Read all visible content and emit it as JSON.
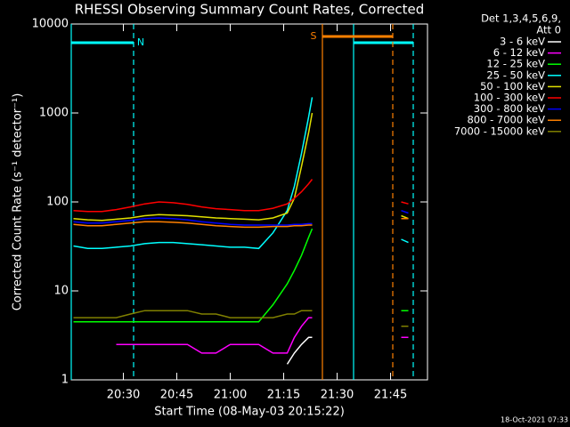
{
  "chart_data": {
    "type": "line",
    "title": "RHESSI Observing Summary Count Rates, Corrected",
    "xlabel": "Start Time (08-May-03 20:15:22)",
    "ylabel": "Corrected Count Rate (s⁻¹ detector⁻¹)",
    "legend_title": [
      "Det 1,3,4,5,6,9,",
      "Att 0"
    ],
    "footer": "18-Oct-2021 07:33",
    "yscale": "log",
    "grid": false,
    "xlim": [
      15.37,
      115.37
    ],
    "ylim": [
      1,
      10000
    ],
    "yticks": [
      1,
      10,
      100,
      1000,
      10000
    ],
    "xticks": [
      {
        "value": 30,
        "label": "20:30"
      },
      {
        "value": 45,
        "label": "20:45"
      },
      {
        "value": 60,
        "label": "21:00"
      },
      {
        "value": 75,
        "label": "21:15"
      },
      {
        "value": 90,
        "label": "21:30"
      },
      {
        "value": 105,
        "label": "21:45"
      }
    ],
    "x": [
      16,
      20,
      24,
      28,
      32,
      36,
      40,
      44,
      48,
      52,
      56,
      60,
      64,
      68,
      72,
      76,
      78,
      80,
      82,
      83,
      95,
      108,
      110
    ],
    "series": [
      {
        "name": "3 - 6 keV",
        "color": "#ffffff",
        "values": [
          null,
          null,
          null,
          null,
          null,
          null,
          null,
          null,
          null,
          null,
          null,
          null,
          null,
          null,
          null,
          1.5,
          2,
          2.5,
          3,
          3,
          null,
          null,
          null
        ]
      },
      {
        "name": "6 - 12 keV",
        "color": "#ff00ff",
        "values": [
          null,
          null,
          null,
          2.5,
          2.5,
          2.5,
          2.5,
          2.5,
          2.5,
          2,
          2,
          2.5,
          2.5,
          2.5,
          2,
          2,
          3,
          4,
          5,
          5,
          null,
          3,
          3
        ]
      },
      {
        "name": "12 - 25 keV",
        "color": "#00ff00",
        "values": [
          4.5,
          4.5,
          4.5,
          4.5,
          4.5,
          4.5,
          4.5,
          4.5,
          4.5,
          4.5,
          4.5,
          4.5,
          4.5,
          4.5,
          7,
          12,
          17,
          25,
          40,
          50,
          null,
          6,
          6
        ]
      },
      {
        "name": "25 - 50 keV",
        "color": "#00ffff",
        "values": [
          32,
          30,
          30,
          31,
          32,
          34,
          35,
          35,
          34,
          33,
          32,
          31,
          31,
          30,
          45,
          80,
          150,
          350,
          900,
          1500,
          null,
          38,
          35
        ]
      },
      {
        "name": "50 - 100 keV",
        "color": "#e0e000",
        "values": [
          65,
          63,
          62,
          64,
          66,
          70,
          72,
          71,
          70,
          68,
          66,
          65,
          64,
          63,
          66,
          75,
          110,
          250,
          600,
          1000,
          null,
          70,
          65
        ]
      },
      {
        "name": "100 - 300 keV",
        "color": "#ff0000",
        "values": [
          80,
          78,
          78,
          82,
          88,
          95,
          100,
          98,
          94,
          88,
          84,
          82,
          80,
          80,
          85,
          95,
          110,
          130,
          160,
          180,
          null,
          100,
          95
        ]
      },
      {
        "name": "300 - 800 keV",
        "color": "#0000ff",
        "values": [
          60,
          58,
          58,
          60,
          62,
          65,
          66,
          65,
          63,
          60,
          58,
          56,
          55,
          55,
          55,
          55,
          56,
          56,
          57,
          57,
          null,
          80,
          75
        ]
      },
      {
        "name": "800 - 7000 keV",
        "color": "#ff8000",
        "values": [
          56,
          54,
          54,
          56,
          58,
          60,
          60,
          59,
          58,
          56,
          54,
          53,
          52,
          52,
          53,
          53,
          54,
          54,
          55,
          55,
          null,
          65,
          65
        ]
      },
      {
        "name": "7000 - 15000 keV",
        "color": "#808000",
        "values": [
          5,
          5,
          5,
          5,
          5.5,
          6,
          6,
          6,
          6,
          5.5,
          5.5,
          5,
          5,
          5,
          5,
          5.5,
          5.5,
          6,
          6,
          6,
          null,
          4,
          4
        ]
      }
    ],
    "night": {
      "label": "N",
      "color": "#00ffff",
      "intervals": [
        [
          15.37,
          32.87
        ],
        [
          94.62,
          111.37
        ]
      ]
    },
    "saa": {
      "label": "S",
      "color": "#ff8000",
      "intervals": [
        [
          85.87,
          105.62
        ]
      ]
    }
  }
}
